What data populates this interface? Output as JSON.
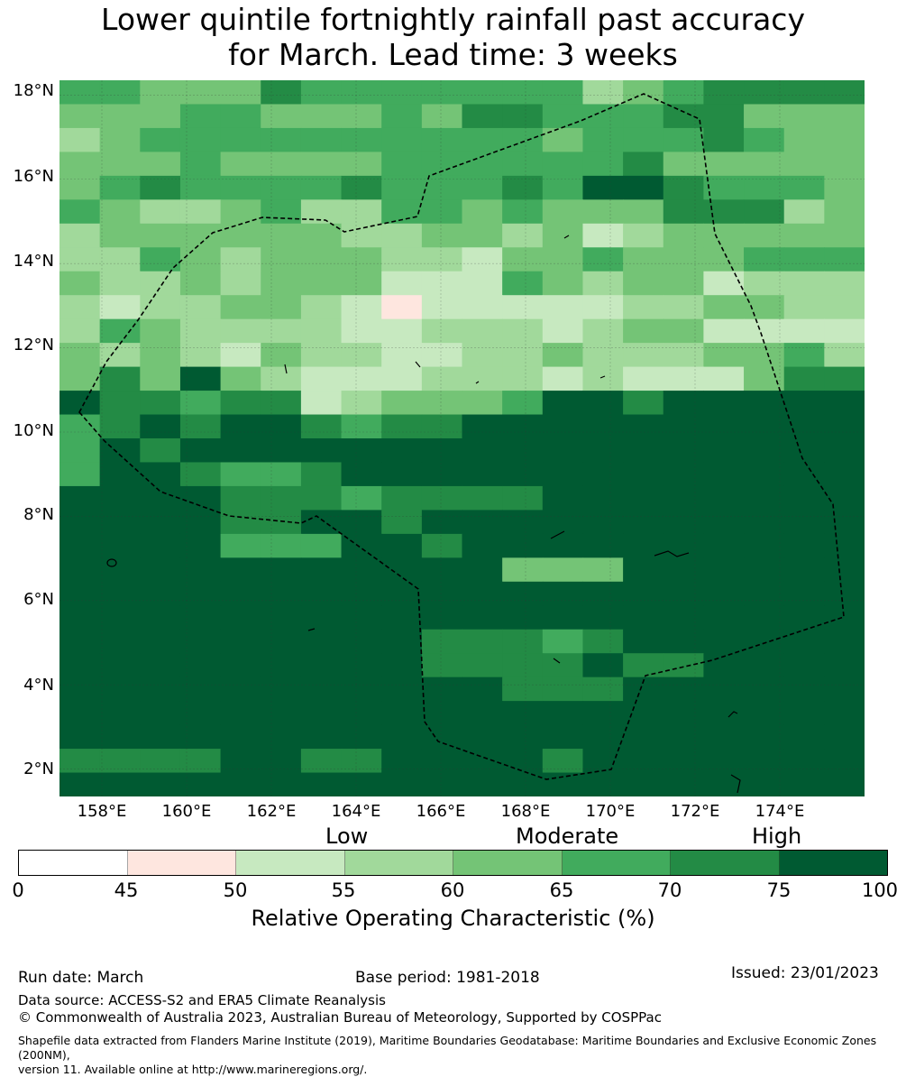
{
  "title": {
    "line1": "Lower quintile fortnightly rainfall past accuracy",
    "line2": "for March. Lead time: 3 weeks"
  },
  "map": {
    "lat_labels": [
      "18°N",
      "16°N",
      "14°N",
      "12°N",
      "10°N",
      "8°N",
      "6°N",
      "4°N",
      "2°N"
    ],
    "lon_labels": [
      "158°E",
      "160°E",
      "162°E",
      "164°E",
      "166°E",
      "168°E",
      "170°E",
      "172°E",
      "174°E"
    ],
    "lat_range": [
      1.35,
      18.35
    ],
    "lon_range": [
      157.0,
      176.0
    ],
    "colormap": [
      "#ffffff",
      "#fee6df",
      "#c7e9c0",
      "#a1d99b",
      "#74c476",
      "#41ab5d",
      "#238b45",
      "#005a32"
    ],
    "grid_rows": [
      "55444655555553456666",
      "44455444546655566444",
      "34555555555545556544",
      "44454444555555644444",
      "45655556555657765554",
      "54334533554544466634",
      "34444443344342344444",
      "33543444332445444555",
      "43343444222543442333",
      "32334432122222334433",
      "35433332233323442222",
      "43432433223343334453",
      "46474322233323222466",
      "76656623444577677777",
      "56767765667777777777",
      "57677777777777777777",
      "57765567777777777777",
      "77776665666677777777",
      "77776677677777777777",
      "77775557767777777777",
      "77777777777444777777",
      "77777777777777777777",
      "77777777777777777777",
      "77777777766656777777",
      "77777777766667667777",
      "77777777777666777777",
      "77777777777777777777",
      "77777777777777777777",
      "66667766777767777777",
      "77777777777777777777"
    ]
  },
  "colorbar": {
    "categories": [
      "Low",
      "Moderate",
      "High"
    ],
    "ticks": [
      "0",
      "45",
      "50",
      "55",
      "60",
      "65",
      "70",
      "75",
      "100"
    ],
    "label": "Relative Operating Characteristic (%)"
  },
  "footer": {
    "run_date": "Run date: March",
    "base_period": "Base period: 1981-2018",
    "issued": "Issued: 23/01/2023",
    "data_source": "Data source: ACCESS-S2 and ERA5 Climate Reanalysis",
    "copyright": "© Commonwealth of Australia 2023, Australian Bureau of Meteorology, Supported by COSPPac",
    "shapefile_line1": "Shapefile data extracted from Flanders Marine Institute (2019), Maritime Boundaries Geodatabase: Maritime Boundaries and Exclusive Economic Zones (200NM),",
    "shapefile_line2": "version 11. Available online at http://www.marineregions.org/."
  }
}
